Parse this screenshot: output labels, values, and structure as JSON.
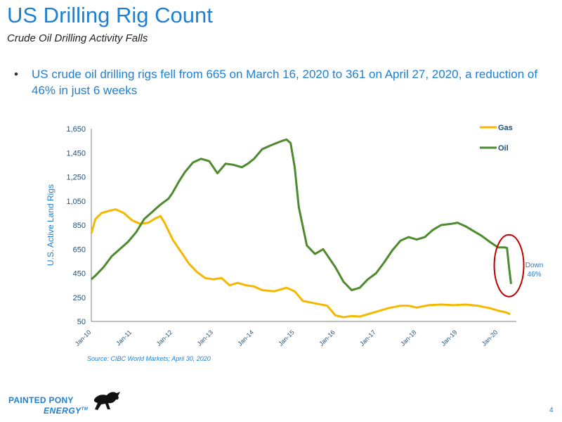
{
  "slide": {
    "title": "US Drilling Rig Count",
    "subtitle": "Crude Oil Drilling Activity Falls",
    "bullet": "US crude oil drilling rigs fell from 665 on March 16, 2020 to 361 on April 27, 2020, a reduction of 46% in just 6 weeks",
    "source": "Source: CIBC World Markets; April 30, 2020",
    "page_number": "4",
    "logo_line1": "PAINTED PONY",
    "logo_line2": "ENERGY",
    "logo_mark": "TM"
  },
  "colors": {
    "gas": "#f5b800",
    "oil": "#4e8a2e",
    "highlight_ellipse": "#c00000",
    "accent": "#1f7fd0"
  },
  "chart_data": {
    "type": "line",
    "ylabel": "U.S. Active Land Rigs",
    "ylim": [
      50,
      1650
    ],
    "yticks": [
      50,
      250,
      450,
      650,
      850,
      1050,
      1250,
      1450,
      1650
    ],
    "ytick_labels": [
      "50",
      "250",
      "450",
      "650",
      "850",
      "1,050",
      "1,250",
      "1,450",
      "1,650"
    ],
    "xlim": [
      2010.0,
      2020.45
    ],
    "xticks": [
      2010,
      2011,
      2012,
      2013,
      2014,
      2015,
      2016,
      2017,
      2018,
      2019,
      2020
    ],
    "xtick_labels": [
      "Jan-10",
      "Jan-11",
      "Jan-12",
      "Jan-13",
      "Jan-14",
      "Jan-15",
      "Jan-16",
      "Jan-17",
      "Jan-18",
      "Jan-19",
      "Jan-20"
    ],
    "legend_position": "top-right",
    "grid": false,
    "annotation": {
      "line1": "Down",
      "line2": "46%",
      "x": 2020.2,
      "y": 500
    },
    "series": [
      {
        "name": "Gas",
        "x": [
          2010.0,
          2010.1,
          2010.25,
          2010.45,
          2010.6,
          2010.8,
          2011.0,
          2011.2,
          2011.4,
          2011.6,
          2011.7,
          2011.8,
          2012.0,
          2012.2,
          2012.4,
          2012.6,
          2012.8,
          2013.0,
          2013.2,
          2013.4,
          2013.6,
          2013.8,
          2014.0,
          2014.2,
          2014.5,
          2014.8,
          2015.0,
          2015.2,
          2015.5,
          2015.8,
          2016.0,
          2016.2,
          2016.4,
          2016.6,
          2016.8,
          2017.0,
          2017.3,
          2017.6,
          2017.8,
          2018.0,
          2018.3,
          2018.6,
          2018.9,
          2019.2,
          2019.5,
          2019.8,
          2020.0,
          2020.2,
          2020.3
        ],
        "values": [
          780,
          900,
          950,
          970,
          980,
          950,
          890,
          860,
          870,
          910,
          925,
          870,
          730,
          630,
          530,
          460,
          410,
          400,
          410,
          350,
          370,
          350,
          340,
          310,
          300,
          330,
          300,
          220,
          200,
          180,
          100,
          85,
          95,
          90,
          110,
          130,
          160,
          180,
          180,
          165,
          185,
          190,
          185,
          190,
          180,
          160,
          140,
          125,
          110
        ]
      },
      {
        "name": "Oil",
        "x": [
          2010.0,
          2010.1,
          2010.3,
          2010.5,
          2010.7,
          2010.9,
          2011.1,
          2011.3,
          2011.5,
          2011.7,
          2011.9,
          2012.0,
          2012.15,
          2012.3,
          2012.5,
          2012.7,
          2012.9,
          2013.1,
          2013.3,
          2013.5,
          2013.7,
          2013.85,
          2014.0,
          2014.2,
          2014.4,
          2014.55,
          2014.7,
          2014.8,
          2014.9,
          2015.0,
          2015.1,
          2015.3,
          2015.5,
          2015.7,
          2015.9,
          2016.0,
          2016.2,
          2016.4,
          2016.6,
          2016.8,
          2017.0,
          2017.2,
          2017.4,
          2017.6,
          2017.8,
          2018.0,
          2018.2,
          2018.4,
          2018.6,
          2018.85,
          2019.0,
          2019.2,
          2019.4,
          2019.6,
          2019.8,
          2020.0,
          2020.15,
          2020.22,
          2020.27,
          2020.32
        ],
        "values": [
          400,
          430,
          500,
          590,
          650,
          710,
          790,
          900,
          960,
          1020,
          1070,
          1120,
          1210,
          1290,
          1370,
          1400,
          1380,
          1280,
          1360,
          1350,
          1330,
          1360,
          1400,
          1480,
          1510,
          1530,
          1550,
          1560,
          1530,
          1330,
          1000,
          680,
          610,
          650,
          550,
          500,
          380,
          310,
          330,
          400,
          450,
          540,
          640,
          720,
          750,
          730,
          750,
          810,
          850,
          860,
          870,
          840,
          800,
          760,
          710,
          665,
          665,
          660,
          500,
          361
        ]
      }
    ]
  }
}
